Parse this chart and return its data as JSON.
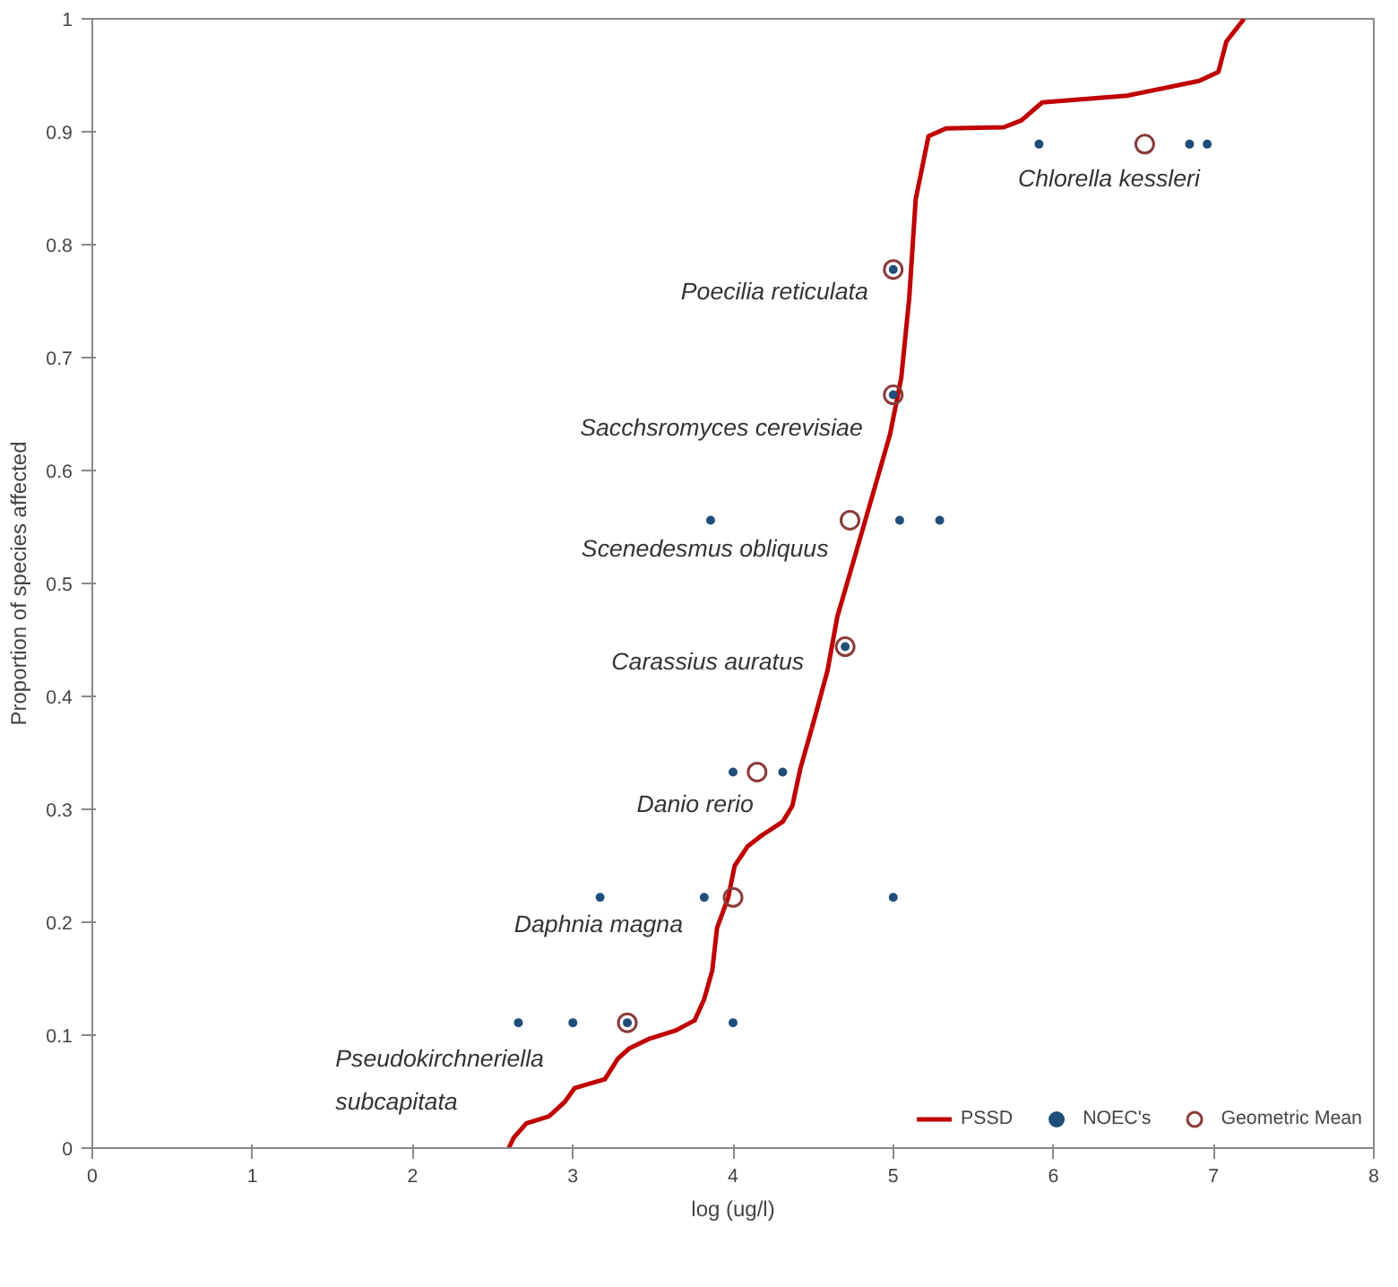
{
  "chart_data": {
    "type": "line",
    "xlabel": "log (ug/l)",
    "ylabel": "Proportion of species affected",
    "xlim": [
      0,
      8
    ],
    "ylim": [
      0,
      1
    ],
    "xticks": [
      0,
      1,
      2,
      3,
      4,
      5,
      6,
      7,
      8
    ],
    "yticks": [
      0,
      0.1,
      0.2,
      0.3,
      0.4,
      0.5,
      0.6,
      0.7,
      0.8,
      0.9,
      1
    ],
    "grid": false,
    "legend": "bottom right",
    "series": [
      {
        "name": "PSSD",
        "color": "#c00000",
        "marker": "none",
        "line_style": "solid",
        "x": [
          2.6,
          2.63,
          2.71,
          2.85,
          2.95,
          3.01,
          3.2,
          3.28,
          3.35,
          3.48,
          3.64,
          3.76,
          3.82,
          3.87,
          3.9,
          3.97,
          4.01,
          4.09,
          4.18,
          4.31,
          4.37,
          4.42,
          4.5,
          4.59,
          4.65,
          4.73,
          4.85,
          4.98,
          5.05,
          5.1,
          5.14,
          5.22,
          5.33,
          5.69,
          5.8,
          5.93,
          6.46,
          6.91,
          7.03,
          7.08,
          7.19
        ],
        "values": [
          0,
          0.009,
          0.022,
          0.028,
          0.041,
          0.053,
          0.061,
          0.079,
          0.088,
          0.097,
          0.104,
          0.113,
          0.132,
          0.157,
          0.195,
          0.222,
          0.25,
          0.267,
          0.277,
          0.289,
          0.303,
          0.336,
          0.376,
          0.423,
          0.47,
          0.509,
          0.568,
          0.632,
          0.682,
          0.753,
          0.84,
          0.896,
          0.903,
          0.904,
          0.91,
          0.926,
          0.932,
          0.945,
          0.953,
          0.98,
          1.0
        ]
      },
      {
        "name": "NOEC's",
        "type": "scatter",
        "color": "#1f4e79",
        "marker": "circle",
        "x": [
          2.66,
          3.0,
          3.34,
          4.0,
          3.17,
          3.82,
          5.0,
          4.0,
          4.31,
          4.7,
          3.86,
          5.04,
          5.29,
          5.0,
          5.0,
          5.91,
          6.85,
          6.96
        ],
        "values": [
          0.111,
          0.111,
          0.111,
          0.111,
          0.222,
          0.222,
          0.222,
          0.333,
          0.333,
          0.444,
          0.556,
          0.556,
          0.556,
          0.667,
          0.778,
          0.889,
          0.889,
          0.889
        ]
      },
      {
        "name": "Geometric Mean",
        "type": "scatter",
        "color": "#8b3a3a",
        "marker": "circle",
        "x": [
          3.34,
          4.0,
          4.15,
          4.7,
          4.73,
          5.0,
          5.0,
          6.57
        ],
        "values": [
          0.111,
          0.222,
          0.333,
          0.444,
          0.556,
          0.667,
          0.778,
          0.889
        ]
      }
    ],
    "annotations": [
      {
        "text": "Pseudokirchneriella\nsubcapitata",
        "x": 2.95,
        "y": 0.041
      },
      {
        "text": "Daphnia magna",
        "x": 4.0,
        "y": 0.222
      },
      {
        "text": "Danio rerio",
        "x": 4.15,
        "y": 0.333
      },
      {
        "text": "Carassius auratus",
        "x": 4.7,
        "y": 0.444
      },
      {
        "text": "Scenedesmus obliquus",
        "x": 4.73,
        "y": 0.556
      },
      {
        "text": "Sacchsromyces cerevisiae",
        "x": 5.0,
        "y": 0.667
      },
      {
        "text": "Poecilia reticulata",
        "x": 5.0,
        "y": 0.778
      },
      {
        "text": "Chlorella kessleri",
        "x": 6.57,
        "y": 0.889
      }
    ]
  }
}
